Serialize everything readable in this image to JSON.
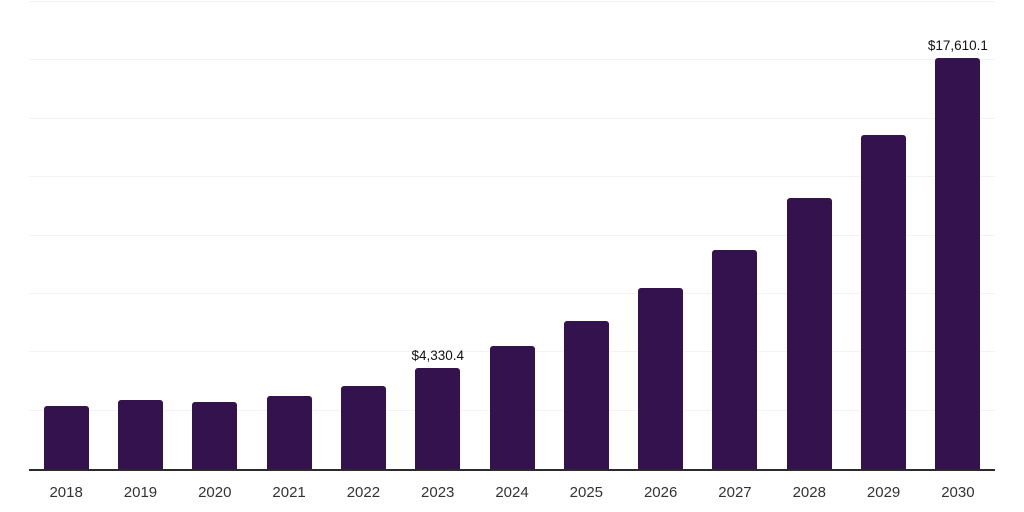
{
  "chart_data": {
    "type": "bar",
    "title": "",
    "xlabel": "",
    "ylabel": "",
    "legend": "none",
    "grid": "horizontal",
    "categories": [
      "2018",
      "2019",
      "2020",
      "2021",
      "2022",
      "2023",
      "2024",
      "2025",
      "2026",
      "2027",
      "2028",
      "2029",
      "2030"
    ],
    "values": [
      2720,
      2950,
      2870,
      3140,
      3550,
      4330.4,
      5280,
      6350,
      7750,
      9390,
      11590,
      14320,
      17610.1
    ],
    "bar_labels": [
      "",
      "",
      "",
      "",
      "",
      "$4,330.4",
      "",
      "",
      "",
      "",
      "",
      "",
      "$17,610.1"
    ],
    "ylim": [
      0,
      20000
    ],
    "gridline_step": 2500,
    "colors": {
      "bar": "#34124E",
      "axis": "#2b2b2b",
      "gridline": "#f3f3f3",
      "tick_text": "#333333",
      "data_label_text": "#111111",
      "background": "#ffffff"
    }
  }
}
